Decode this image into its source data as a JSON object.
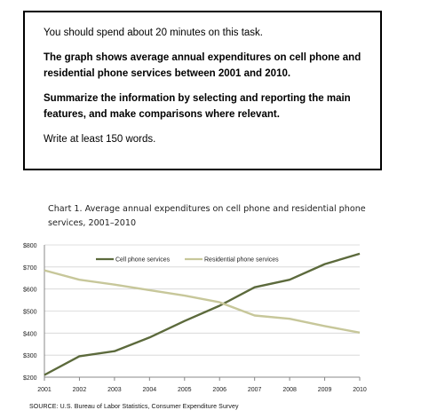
{
  "task": {
    "intro": "You should spend about 20 minutes on this task.",
    "prompt_1": "The graph shows average annual expenditures on cell phone and residential phone services between 2001 and 2010.",
    "prompt_2": "Summarize the information by selecting and reporting the main features, and make comparisons where relevant.",
    "instruction": "Write at least 150 words."
  },
  "chart_data": {
    "type": "line",
    "title": "Chart 1.  Average annual expenditures on cell phone and residential phone services, 2001–2010",
    "x": [
      "2001",
      "2002",
      "2003",
      "2004",
      "2005",
      "2006",
      "2007",
      "2008",
      "2009",
      "2010"
    ],
    "series": [
      {
        "name": "Cell phone services",
        "color": "#5c6a3c",
        "values": [
          210,
          295,
          318,
          380,
          455,
          524,
          608,
          642,
          713,
          760
        ]
      },
      {
        "name": "Residential phone services",
        "color": "#c7c79a",
        "values": [
          685,
          642,
          620,
          595,
          570,
          540,
          480,
          465,
          432,
          402
        ]
      }
    ],
    "y_ticks": [
      "$200",
      "$300",
      "$400",
      "$500",
      "$600",
      "$700",
      "$800"
    ],
    "ylim": [
      200,
      800
    ],
    "grid": true,
    "legend_position": "top-center",
    "source": "SOURCE: U.S. Bureau of Labor Statistics,  Consumer Expenditure Survey"
  }
}
